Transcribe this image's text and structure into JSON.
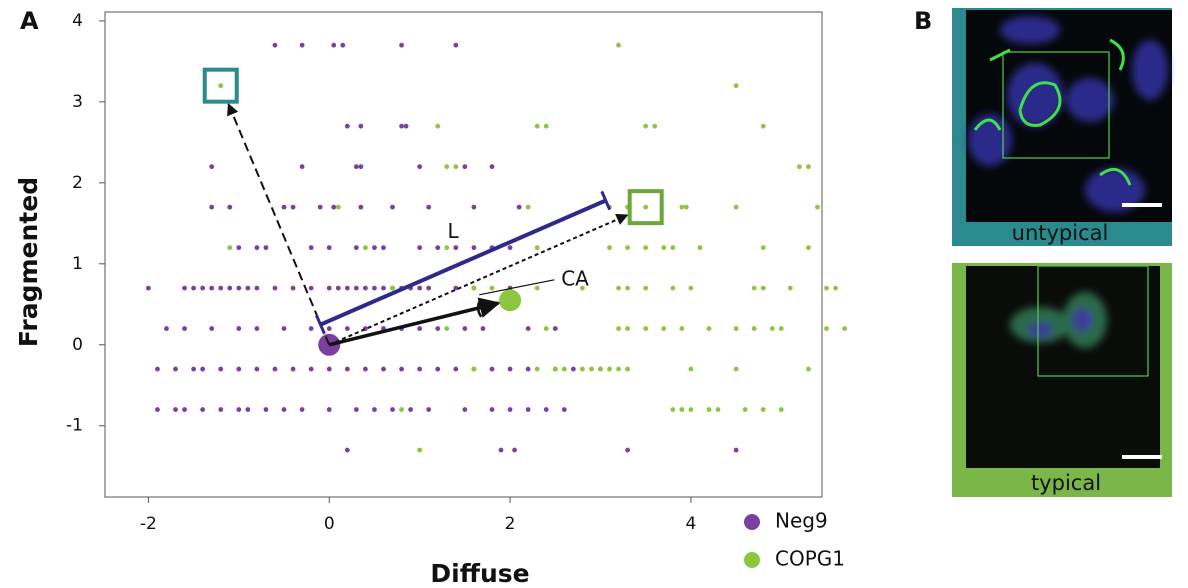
{
  "panel_labels": [
    "A",
    "B"
  ],
  "chart_data": {
    "type": "scatter",
    "xlabel": "Diffuse",
    "ylabel": "Fragmented",
    "xlim": [
      -2.48,
      5.45
    ],
    "ylim": [
      -1.88,
      4.11
    ],
    "xticks": [
      -2,
      0,
      2,
      4
    ],
    "yticks": [
      -1,
      0,
      1,
      2,
      3,
      4
    ],
    "legend": "bottom-right",
    "series": [
      {
        "name": "Neg9",
        "color": "#7b3fa0",
        "x": [
          -0.6,
          -0.3,
          0.05,
          0.15,
          0.8,
          1.4,
          0.2,
          0.35,
          0.8,
          0.85,
          -1.3,
          -0.3,
          0.3,
          0.35,
          1.0,
          1.5,
          1.8,
          -1.3,
          -1.1,
          -0.5,
          -0.4,
          -0.1,
          0.05,
          0.35,
          0.7,
          1.1,
          1.6,
          2.1,
          -1.0,
          -0.8,
          -0.7,
          -0.2,
          0.0,
          0.3,
          0.5,
          0.6,
          1.0,
          1.2,
          1.4,
          1.6,
          1.8,
          2.0,
          -2.0,
          -1.6,
          -1.5,
          -1.4,
          -1.3,
          -1.2,
          -1.1,
          -1.0,
          -0.9,
          -0.8,
          -0.6,
          -0.4,
          -0.2,
          0.0,
          0.1,
          0.2,
          0.3,
          0.4,
          0.5,
          0.6,
          0.7,
          0.8,
          0.9,
          1.0,
          1.1,
          1.4,
          1.6,
          2.0,
          -1.8,
          -1.6,
          -1.3,
          -1.0,
          -0.8,
          -0.5,
          -0.2,
          0.0,
          0.2,
          0.4,
          0.6,
          0.8,
          1.0,
          1.2,
          1.5,
          1.7,
          2.2,
          2.5,
          -1.9,
          -1.7,
          -1.5,
          -1.4,
          -1.2,
          -1.0,
          -0.8,
          -0.6,
          -0.4,
          -0.2,
          0.0,
          0.2,
          0.4,
          0.6,
          0.8,
          1.0,
          1.2,
          1.4,
          1.6,
          1.8,
          2.0,
          2.2,
          2.5,
          2.7,
          3.0,
          -1.9,
          -1.7,
          -1.6,
          -1.4,
          -1.2,
          -1.0,
          -0.9,
          -0.7,
          -0.5,
          -0.3,
          0.0,
          0.3,
          0.5,
          0.7,
          0.9,
          1.1,
          1.5,
          1.8,
          2.0,
          2.2,
          2.4,
          2.6,
          0.2,
          1.9,
          2.05,
          3.3,
          4.5
        ],
        "y": [
          3.7,
          3.7,
          3.7,
          3.7,
          3.7,
          3.7,
          2.7,
          2.7,
          2.7,
          2.7,
          2.2,
          2.2,
          2.2,
          2.2,
          2.2,
          2.2,
          2.2,
          1.7,
          1.7,
          1.7,
          1.7,
          1.7,
          1.7,
          1.7,
          1.7,
          1.7,
          1.7,
          1.7,
          1.2,
          1.2,
          1.2,
          1.2,
          1.2,
          1.2,
          1.2,
          1.2,
          1.2,
          1.2,
          1.2,
          1.2,
          1.2,
          1.2,
          0.7,
          0.7,
          0.7,
          0.7,
          0.7,
          0.7,
          0.7,
          0.7,
          0.7,
          0.7,
          0.7,
          0.7,
          0.7,
          0.7,
          0.7,
          0.7,
          0.7,
          0.7,
          0.7,
          0.7,
          0.7,
          0.7,
          0.7,
          0.7,
          0.7,
          0.7,
          0.7,
          0.7,
          0.2,
          0.2,
          0.2,
          0.2,
          0.2,
          0.2,
          0.2,
          0.2,
          0.2,
          0.2,
          0.2,
          0.2,
          0.2,
          0.2,
          0.2,
          0.2,
          0.2,
          0.2,
          -0.3,
          -0.3,
          -0.3,
          -0.3,
          -0.3,
          -0.3,
          -0.3,
          -0.3,
          -0.3,
          -0.3,
          -0.3,
          -0.3,
          -0.3,
          -0.3,
          -0.3,
          -0.3,
          -0.3,
          -0.3,
          -0.3,
          -0.3,
          -0.3,
          -0.3,
          -0.3,
          -0.3,
          -0.3,
          -0.8,
          -0.8,
          -0.8,
          -0.8,
          -0.8,
          -0.8,
          -0.8,
          -0.8,
          -0.8,
          -0.8,
          -0.8,
          -0.8,
          -0.8,
          -0.8,
          -0.8,
          -0.8,
          -0.8,
          -0.8,
          -0.8,
          -0.8,
          -0.8,
          -0.8,
          -1.3,
          -1.3,
          -1.3,
          -1.3,
          -1.3
        ]
      },
      {
        "name": "COPG1",
        "color": "#8cc63f",
        "x": [
          3.2,
          -1.2,
          4.5,
          1.2,
          2.3,
          2.4,
          3.5,
          3.6,
          4.8,
          1.3,
          1.4,
          5.2,
          5.3,
          0.1,
          2.2,
          3.1,
          3.3,
          3.5,
          3.9,
          3.95,
          4.5,
          5.4,
          -1.1,
          0.4,
          1.3,
          2.3,
          3.1,
          3.3,
          3.5,
          3.7,
          3.8,
          4.1,
          4.8,
          5.3,
          0.7,
          1.6,
          1.8,
          2.3,
          2.8,
          3.2,
          3.3,
          3.5,
          3.8,
          4.0,
          4.7,
          4.8,
          5.1,
          5.5,
          5.6,
          1.3,
          2.4,
          3.2,
          3.3,
          3.5,
          3.7,
          3.9,
          4.2,
          4.5,
          4.7,
          4.9,
          5.0,
          5.5,
          5.7,
          1.6,
          2.3,
          2.5,
          2.6,
          2.8,
          2.9,
          3.0,
          3.1,
          3.2,
          3.3,
          4.0,
          4.5,
          5.3,
          0.8,
          3.8,
          3.9,
          4.0,
          4.2,
          4.3,
          4.6,
          4.8,
          5.0,
          1.0
        ],
        "y": [
          3.7,
          3.2,
          3.2,
          2.7,
          2.7,
          2.7,
          2.7,
          2.7,
          2.7,
          2.2,
          2.2,
          2.2,
          2.2,
          1.7,
          1.7,
          1.7,
          1.7,
          1.7,
          1.7,
          1.7,
          1.7,
          1.7,
          1.2,
          1.2,
          1.2,
          1.2,
          1.2,
          1.2,
          1.2,
          1.2,
          1.2,
          1.2,
          1.2,
          1.2,
          0.7,
          0.7,
          0.7,
          0.7,
          0.7,
          0.7,
          0.7,
          0.7,
          0.7,
          0.7,
          0.7,
          0.7,
          0.7,
          0.7,
          0.7,
          0.2,
          0.2,
          0.2,
          0.2,
          0.2,
          0.2,
          0.2,
          0.2,
          0.2,
          0.2,
          0.2,
          0.2,
          0.2,
          0.2,
          -0.3,
          -0.3,
          -0.3,
          -0.3,
          -0.3,
          -0.3,
          -0.3,
          -0.3,
          -0.3,
          -0.3,
          -0.3,
          -0.3,
          -0.3,
          -0.8,
          -0.8,
          -0.8,
          -0.8,
          -0.8,
          -0.8,
          -0.8,
          -0.8,
          -0.8,
          -1.3
        ]
      }
    ],
    "centroids": {
      "x": [
        0,
        2
      ],
      "y": [
        0,
        0.55
      ]
    },
    "arrow_targets": {
      "x": [
        -1.2,
        3.5
      ],
      "y": [
        3.2,
        1.7
      ]
    },
    "annotations": [
      "L",
      "CA"
    ]
  },
  "images": [
    {
      "label": "untypical"
    },
    {
      "label": "typical"
    }
  ]
}
